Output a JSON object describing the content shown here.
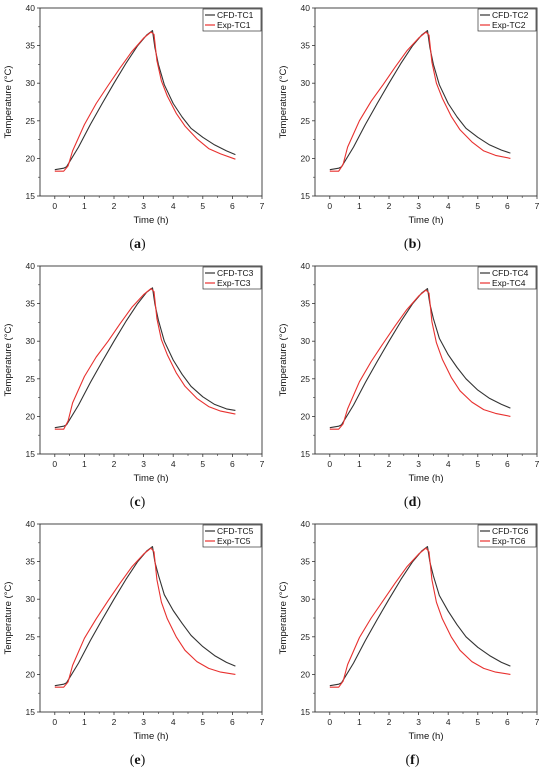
{
  "chart_data": [
    {
      "type": "line",
      "caption_letter": "a",
      "xlabel": "Time (h)",
      "ylabel": "Temperature (°C)",
      "xlim": [
        -0.5,
        7
      ],
      "ylim": [
        15,
        40
      ],
      "xticks": [
        0,
        1,
        2,
        3,
        4,
        5,
        6,
        7
      ],
      "yticks": [
        15,
        20,
        25,
        30,
        35,
        40
      ],
      "legend_position": "top-right",
      "grid": false,
      "series": [
        {
          "name": "CFD-TC1",
          "color": "#333333",
          "x": [
            0,
            0.3,
            0.4,
            0.8,
            1.2,
            1.6,
            2.0,
            2.4,
            2.8,
            3.1,
            3.3,
            3.38,
            3.5,
            3.7,
            4.0,
            4.3,
            4.6,
            5.0,
            5.4,
            5.8,
            6.1
          ],
          "y": [
            18.5,
            18.7,
            18.9,
            21.5,
            24.5,
            27.3,
            30.0,
            32.6,
            35.0,
            36.4,
            37.0,
            34.8,
            32.5,
            29.8,
            27.3,
            25.5,
            24.0,
            22.8,
            21.8,
            21.0,
            20.5
          ]
        },
        {
          "name": "Exp-TC1",
          "color": "#e8312f",
          "x": [
            0,
            0.3,
            0.45,
            0.6,
            1.0,
            1.4,
            1.8,
            2.2,
            2.6,
            3.0,
            3.25,
            3.35,
            3.45,
            3.6,
            3.8,
            4.1,
            4.4,
            4.8,
            5.2,
            5.6,
            6.1
          ],
          "y": [
            18.3,
            18.3,
            19.0,
            21.0,
            24.5,
            27.3,
            29.7,
            32.0,
            34.2,
            36.0,
            36.8,
            36.5,
            33.0,
            30.3,
            28.3,
            26.0,
            24.3,
            22.6,
            21.3,
            20.6,
            19.9
          ]
        }
      ]
    },
    {
      "type": "line",
      "caption_letter": "b",
      "xlabel": "Time (h)",
      "ylabel": "Temperature (°C)",
      "xlim": [
        -0.5,
        7
      ],
      "ylim": [
        15,
        40
      ],
      "xticks": [
        0,
        1,
        2,
        3,
        4,
        5,
        6,
        7
      ],
      "yticks": [
        15,
        20,
        25,
        30,
        35,
        40
      ],
      "legend_position": "top-right",
      "grid": false,
      "series": [
        {
          "name": "CFD-TC2",
          "color": "#333333",
          "x": [
            0,
            0.3,
            0.4,
            0.8,
            1.2,
            1.6,
            2.0,
            2.4,
            2.8,
            3.1,
            3.3,
            3.38,
            3.5,
            3.7,
            4.0,
            4.3,
            4.6,
            5.0,
            5.4,
            5.8,
            6.1
          ],
          "y": [
            18.5,
            18.7,
            18.9,
            21.5,
            24.5,
            27.3,
            30.0,
            32.6,
            35.0,
            36.4,
            37.0,
            34.8,
            32.5,
            29.8,
            27.3,
            25.5,
            24.0,
            22.8,
            21.8,
            21.1,
            20.7
          ]
        },
        {
          "name": "Exp-TC2",
          "color": "#e8312f",
          "x": [
            0,
            0.3,
            0.45,
            0.6,
            1.0,
            1.4,
            1.8,
            2.2,
            2.6,
            3.0,
            3.25,
            3.35,
            3.45,
            3.6,
            3.8,
            4.1,
            4.4,
            4.8,
            5.2,
            5.6,
            6.1
          ],
          "y": [
            18.3,
            18.3,
            19.2,
            21.5,
            25.0,
            27.6,
            29.8,
            32.1,
            34.3,
            36.0,
            36.8,
            36.4,
            32.8,
            30.0,
            28.0,
            25.6,
            23.8,
            22.2,
            21.0,
            20.4,
            20.0
          ]
        }
      ]
    },
    {
      "type": "line",
      "caption_letter": "c",
      "xlabel": "Time (h)",
      "ylabel": "Temperature (°C)",
      "xlim": [
        -0.5,
        7
      ],
      "ylim": [
        15,
        40
      ],
      "xticks": [
        0,
        1,
        2,
        3,
        4,
        5,
        6,
        7
      ],
      "yticks": [
        15,
        20,
        25,
        30,
        35,
        40
      ],
      "legend_position": "top-right",
      "grid": false,
      "series": [
        {
          "name": "CFD-TC3",
          "color": "#333333",
          "x": [
            0,
            0.3,
            0.4,
            0.8,
            1.2,
            1.6,
            2.0,
            2.4,
            2.8,
            3.1,
            3.3,
            3.38,
            3.5,
            3.7,
            4.0,
            4.3,
            4.6,
            5.0,
            5.4,
            5.8,
            6.1
          ],
          "y": [
            18.5,
            18.7,
            18.9,
            21.5,
            24.5,
            27.3,
            30.0,
            32.6,
            35.0,
            36.5,
            37.1,
            35.0,
            32.8,
            30.0,
            27.5,
            25.6,
            24.0,
            22.6,
            21.6,
            21.0,
            20.8
          ]
        },
        {
          "name": "Exp-TC3",
          "color": "#e8312f",
          "x": [
            0,
            0.3,
            0.45,
            0.6,
            1.0,
            1.4,
            1.8,
            2.2,
            2.6,
            3.0,
            3.25,
            3.35,
            3.45,
            3.6,
            3.8,
            4.1,
            4.4,
            4.8,
            5.2,
            5.6,
            6.1
          ],
          "y": [
            18.3,
            18.3,
            19.4,
            21.8,
            25.3,
            27.9,
            30.0,
            32.3,
            34.5,
            36.2,
            37.0,
            36.6,
            33.0,
            30.2,
            28.2,
            25.8,
            24.0,
            22.4,
            21.3,
            20.7,
            20.3
          ]
        }
      ]
    },
    {
      "type": "line",
      "caption_letter": "d",
      "xlabel": "Time (h)",
      "ylabel": "Temperature (°C)",
      "xlim": [
        -0.5,
        7
      ],
      "ylim": [
        15,
        40
      ],
      "xticks": [
        0,
        1,
        2,
        3,
        4,
        5,
        6,
        7
      ],
      "yticks": [
        15,
        20,
        25,
        30,
        35,
        40
      ],
      "legend_position": "top-right",
      "grid": false,
      "series": [
        {
          "name": "CFD-TC4",
          "color": "#333333",
          "x": [
            0,
            0.3,
            0.4,
            0.8,
            1.2,
            1.6,
            2.0,
            2.4,
            2.8,
            3.1,
            3.3,
            3.38,
            3.5,
            3.7,
            4.0,
            4.3,
            4.6,
            5.0,
            5.4,
            5.8,
            6.1
          ],
          "y": [
            18.5,
            18.7,
            18.9,
            21.5,
            24.5,
            27.3,
            30.0,
            32.6,
            35.0,
            36.4,
            37.0,
            35.0,
            33.0,
            30.4,
            28.2,
            26.5,
            25.0,
            23.5,
            22.4,
            21.6,
            21.1
          ]
        },
        {
          "name": "Exp-TC4",
          "color": "#e8312f",
          "x": [
            0,
            0.3,
            0.45,
            0.6,
            1.0,
            1.4,
            1.8,
            2.2,
            2.6,
            3.0,
            3.25,
            3.35,
            3.45,
            3.6,
            3.8,
            4.1,
            4.4,
            4.8,
            5.2,
            5.6,
            6.1
          ],
          "y": [
            18.3,
            18.3,
            19.0,
            21.0,
            24.6,
            27.3,
            29.7,
            32.0,
            34.2,
            36.0,
            36.8,
            36.4,
            32.6,
            29.8,
            27.6,
            25.2,
            23.4,
            21.9,
            20.9,
            20.4,
            20.0
          ]
        }
      ]
    },
    {
      "type": "line",
      "caption_letter": "e",
      "xlabel": "Time (h)",
      "ylabel": "Temperature (°C)",
      "xlim": [
        -0.5,
        7
      ],
      "ylim": [
        15,
        40
      ],
      "xticks": [
        0,
        1,
        2,
        3,
        4,
        5,
        6,
        7
      ],
      "yticks": [
        15,
        20,
        25,
        30,
        35,
        40
      ],
      "legend_position": "top-right",
      "grid": false,
      "series": [
        {
          "name": "CFD-TC5",
          "color": "#333333",
          "x": [
            0,
            0.3,
            0.4,
            0.8,
            1.2,
            1.6,
            2.0,
            2.4,
            2.8,
            3.1,
            3.3,
            3.38,
            3.5,
            3.7,
            4.0,
            4.3,
            4.6,
            5.0,
            5.4,
            5.8,
            6.1
          ],
          "y": [
            18.5,
            18.7,
            18.9,
            21.5,
            24.5,
            27.3,
            30.0,
            32.6,
            35.0,
            36.4,
            37.0,
            35.0,
            33.2,
            30.6,
            28.5,
            26.8,
            25.2,
            23.7,
            22.5,
            21.6,
            21.1
          ]
        },
        {
          "name": "Exp-TC5",
          "color": "#e8312f",
          "x": [
            0,
            0.3,
            0.45,
            0.6,
            1.0,
            1.4,
            1.8,
            2.2,
            2.6,
            3.0,
            3.25,
            3.35,
            3.45,
            3.6,
            3.8,
            4.1,
            4.4,
            4.8,
            5.2,
            5.6,
            6.1
          ],
          "y": [
            18.3,
            18.3,
            19.0,
            21.2,
            24.8,
            27.4,
            29.8,
            32.1,
            34.3,
            36.0,
            36.8,
            36.3,
            32.6,
            29.6,
            27.4,
            25.0,
            23.2,
            21.7,
            20.8,
            20.3,
            20.0
          ]
        }
      ]
    },
    {
      "type": "line",
      "caption_letter": "f",
      "xlabel": "Time (h)",
      "ylabel": "Temperature (°C)",
      "xlim": [
        -0.5,
        7
      ],
      "ylim": [
        15,
        40
      ],
      "xticks": [
        0,
        1,
        2,
        3,
        4,
        5,
        6,
        7
      ],
      "yticks": [
        15,
        20,
        25,
        30,
        35,
        40
      ],
      "legend_position": "top-right",
      "grid": false,
      "series": [
        {
          "name": "CFD-TC6",
          "color": "#333333",
          "x": [
            0,
            0.3,
            0.4,
            0.8,
            1.2,
            1.6,
            2.0,
            2.4,
            2.8,
            3.1,
            3.3,
            3.38,
            3.5,
            3.7,
            4.0,
            4.3,
            4.6,
            5.0,
            5.4,
            5.8,
            6.1
          ],
          "y": [
            18.5,
            18.7,
            18.9,
            21.5,
            24.5,
            27.3,
            30.0,
            32.6,
            35.0,
            36.4,
            37.0,
            35.0,
            33.1,
            30.5,
            28.4,
            26.6,
            25.0,
            23.6,
            22.5,
            21.6,
            21.1
          ]
        },
        {
          "name": "Exp-TC6",
          "color": "#e8312f",
          "x": [
            0,
            0.3,
            0.45,
            0.6,
            1.0,
            1.4,
            1.8,
            2.2,
            2.6,
            3.0,
            3.25,
            3.35,
            3.45,
            3.6,
            3.8,
            4.1,
            4.4,
            4.8,
            5.2,
            5.6,
            6.1
          ],
          "y": [
            18.3,
            18.3,
            19.1,
            21.3,
            24.9,
            27.5,
            29.8,
            32.1,
            34.3,
            36.0,
            36.8,
            36.3,
            32.6,
            29.6,
            27.4,
            25.0,
            23.2,
            21.7,
            20.8,
            20.3,
            20.0
          ]
        }
      ]
    }
  ]
}
